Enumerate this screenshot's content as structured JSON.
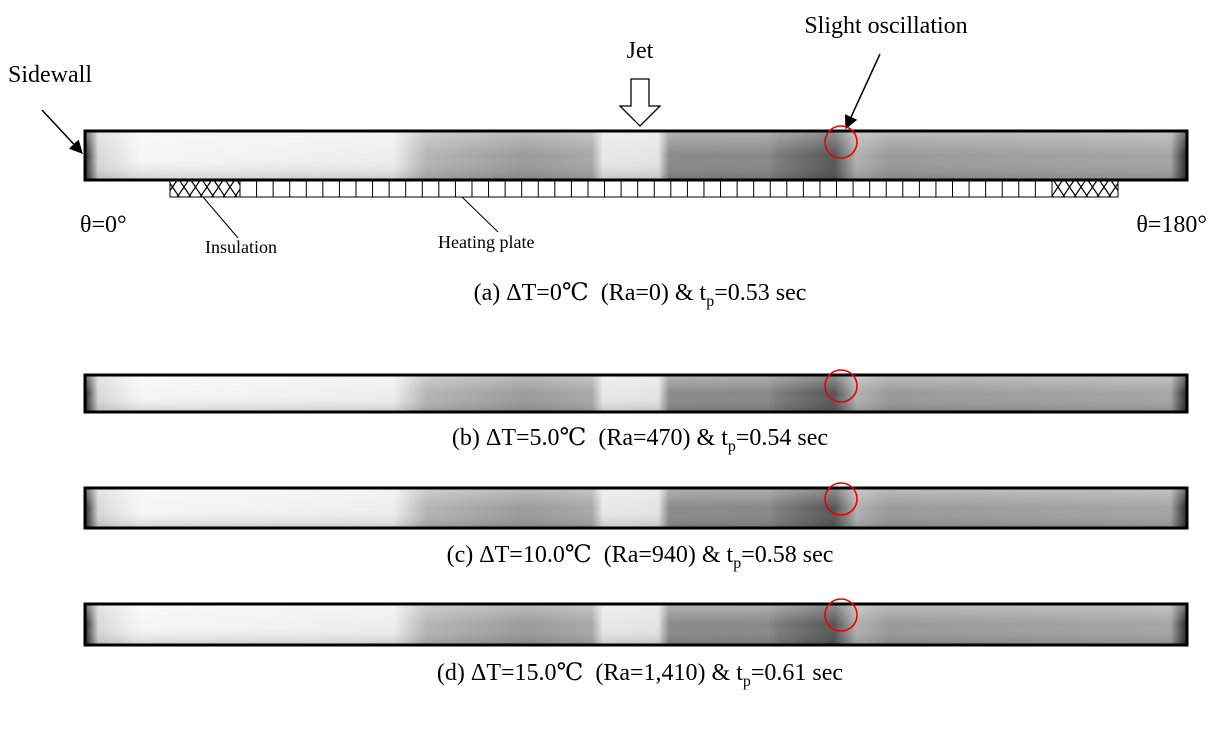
{
  "labels": {
    "sidewall": "Sidewall",
    "jet": "Jet",
    "slight_oscillation": "Slight oscillation",
    "theta_left": "θ=0°",
    "theta_right": "θ=180°",
    "insulation": "Insulation",
    "heating_plate": "Heating plate"
  },
  "panels": [
    {
      "caption_main": "(a) ΔT=0℃  (Ra=0) & t",
      "caption_sub": "p",
      "caption_tail": "=0.53 sec"
    },
    {
      "caption_main": "(b) ΔT=5.0℃  (Ra=470) & t",
      "caption_sub": "p",
      "caption_tail": "=0.54 sec"
    },
    {
      "caption_main": "(c) ΔT=10.0℃  (Ra=940) & t",
      "caption_sub": "p",
      "caption_tail": "=0.58 sec"
    },
    {
      "caption_main": "(d) ΔT=15.0℃  (Ra=1,410) & t",
      "caption_sub": "p",
      "caption_tail": "=0.61 sec"
    }
  ]
}
